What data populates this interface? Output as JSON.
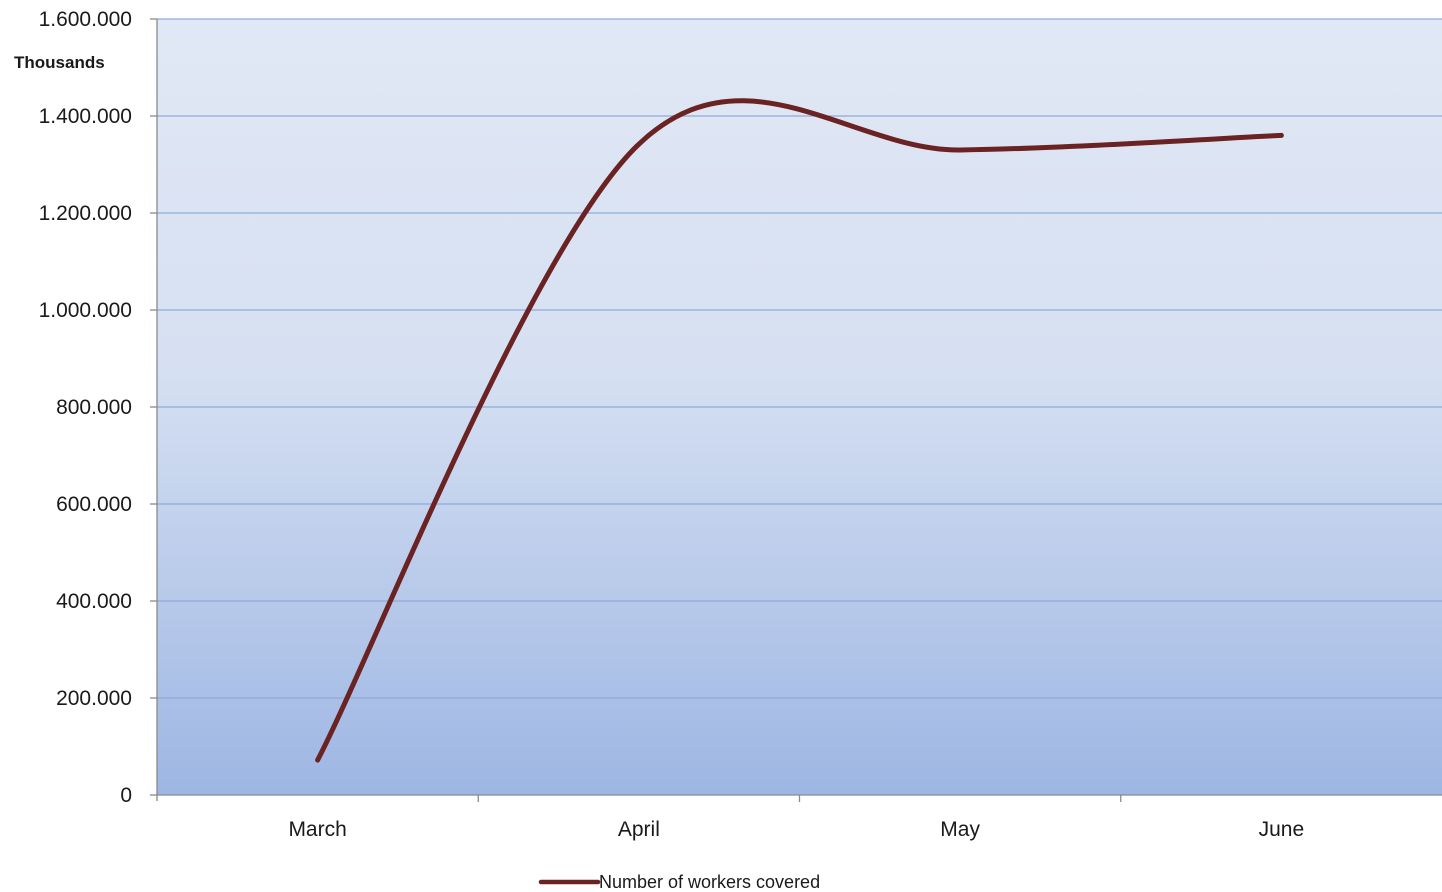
{
  "chart_data": {
    "type": "line",
    "title": "",
    "xlabel": "",
    "ylabel": "",
    "unit_label": "Thousands",
    "categories": [
      "March",
      "April",
      "May",
      "June"
    ],
    "series": [
      {
        "name": "Number of workers covered",
        "color": "#6b2222",
        "values": [
          72000,
          1342000,
          1330000,
          1360000
        ]
      }
    ],
    "ylim": [
      0,
      1600000
    ],
    "yticks": [
      0,
      200000,
      400000,
      600000,
      800000,
      1000000,
      1200000,
      1400000,
      1600000
    ],
    "ytick_labels": [
      "0",
      "200.000",
      "400.000",
      "600.000",
      "800.000",
      "1.000.000",
      "1.200.000",
      "1.400.000",
      "1.600.000"
    ],
    "grid": true,
    "smooth": true,
    "legend_position": "bottom",
    "colors": {
      "plot_bg_top": "#e1e8f5",
      "plot_bg_bottom": "#9db6e3",
      "gridline": "#8eaad8",
      "axis": "#8a8a8a"
    }
  }
}
